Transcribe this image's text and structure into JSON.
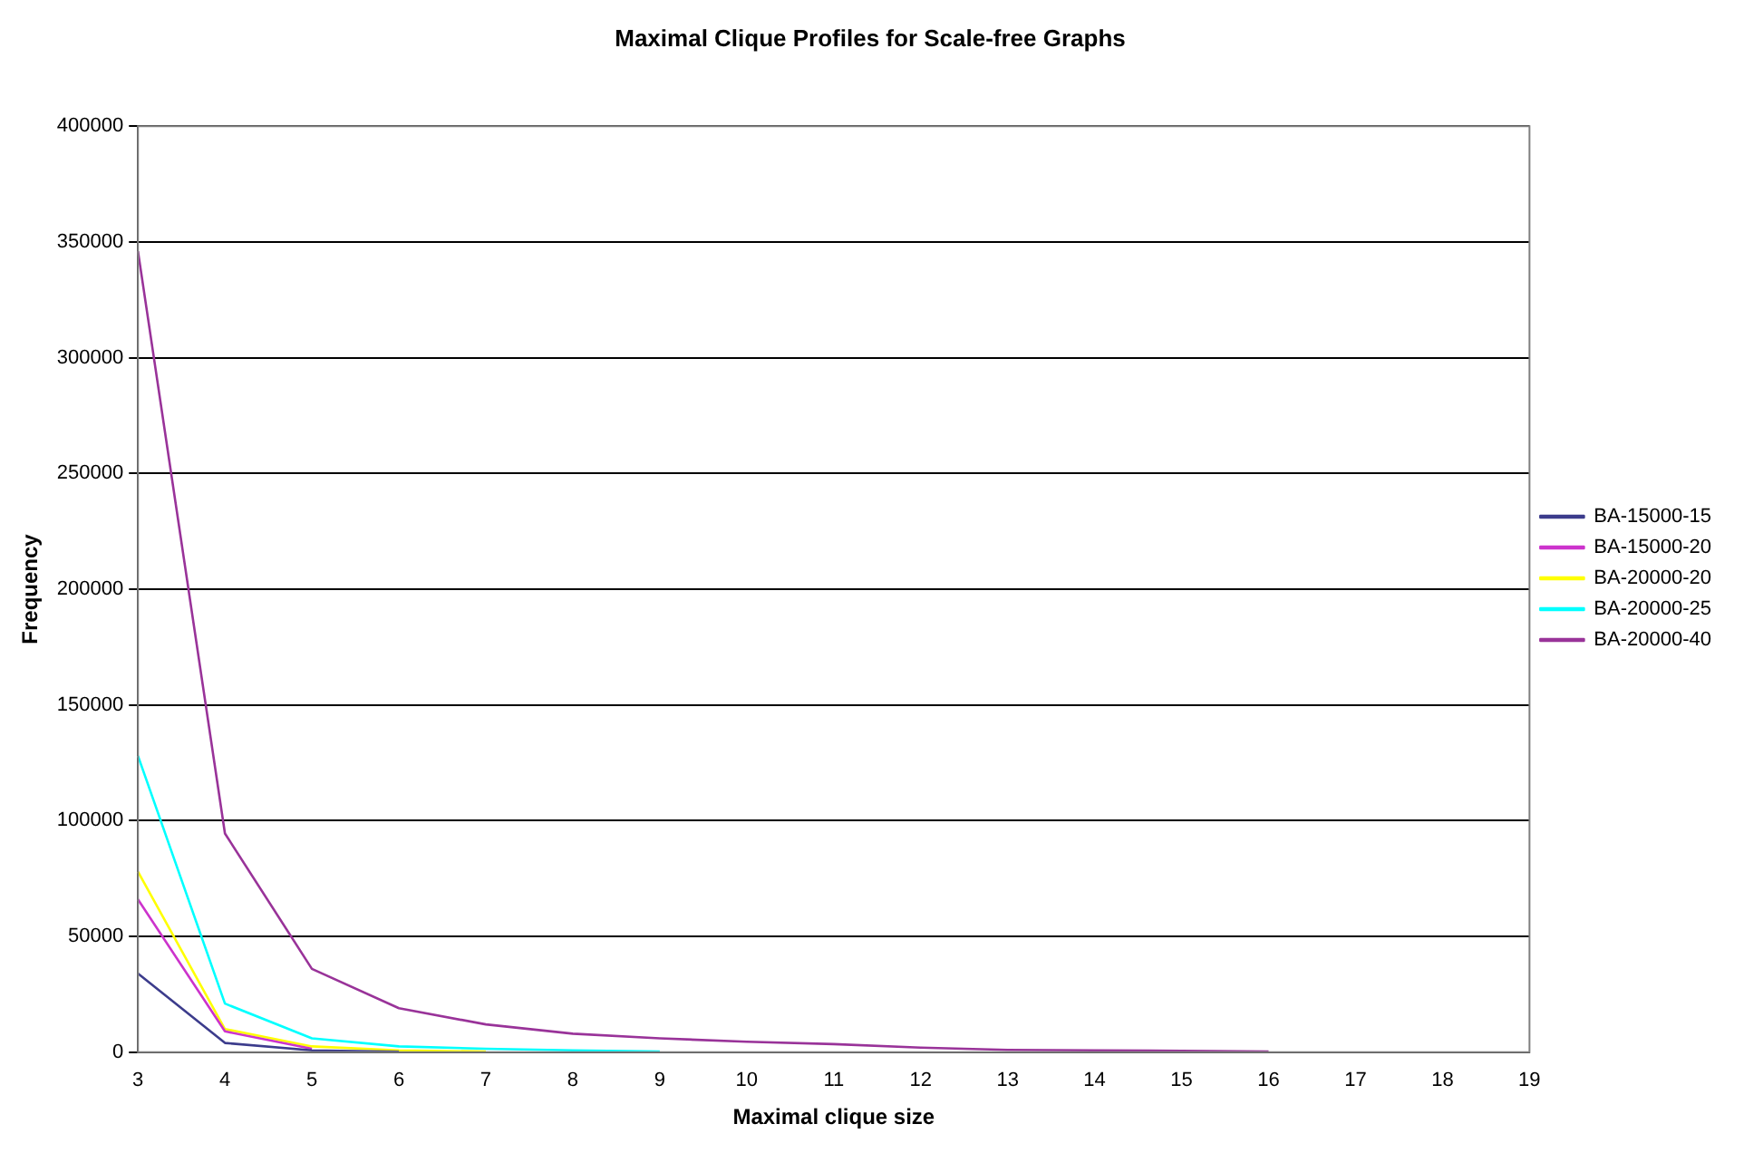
{
  "chart_data": {
    "type": "line",
    "title": "Maximal Clique Profiles for Scale-free Graphs",
    "xlabel": "Maximal clique size",
    "ylabel": "Frequency",
    "categories": [
      "3",
      "4",
      "5",
      "6",
      "7",
      "8",
      "9",
      "10",
      "11",
      "12",
      "13",
      "14",
      "15",
      "16",
      "17",
      "18",
      "19"
    ],
    "series": [
      {
        "name": "BA-15000-15",
        "color": "#3c3c8c",
        "values": [
          34000,
          4000,
          800,
          200,
          null,
          null,
          null,
          null,
          null,
          null,
          null,
          null,
          null,
          null,
          null,
          null,
          null
        ]
      },
      {
        "name": "BA-15000-20",
        "color": "#cc33cc",
        "values": [
          66000,
          9000,
          1500,
          null,
          null,
          null,
          null,
          null,
          null,
          null,
          null,
          null,
          null,
          null,
          null,
          null,
          null
        ]
      },
      {
        "name": "BA-20000-20",
        "color": "#ffff00",
        "values": [
          78000,
          10000,
          2500,
          800,
          300,
          null,
          null,
          null,
          null,
          null,
          null,
          null,
          null,
          null,
          null,
          null,
          null
        ]
      },
      {
        "name": "BA-20000-25",
        "color": "#00ffff",
        "values": [
          128000,
          21000,
          6000,
          2500,
          1500,
          800,
          300,
          null,
          null,
          null,
          null,
          null,
          null,
          null,
          null,
          null,
          null
        ]
      },
      {
        "name": "BA-20000-40",
        "color": "#993399",
        "values": [
          346000,
          94500,
          36000,
          19000,
          12000,
          8000,
          6000,
          4500,
          3500,
          2000,
          1000,
          800,
          600,
          300,
          null,
          null,
          null
        ]
      }
    ],
    "ylim": [
      0,
      400000
    ],
    "yticks": [
      0,
      50000,
      100000,
      150000,
      200000,
      250000,
      300000,
      350000,
      400000
    ],
    "grid": "y",
    "legend": "right",
    "marker": "none",
    "line_style": "solid"
  }
}
